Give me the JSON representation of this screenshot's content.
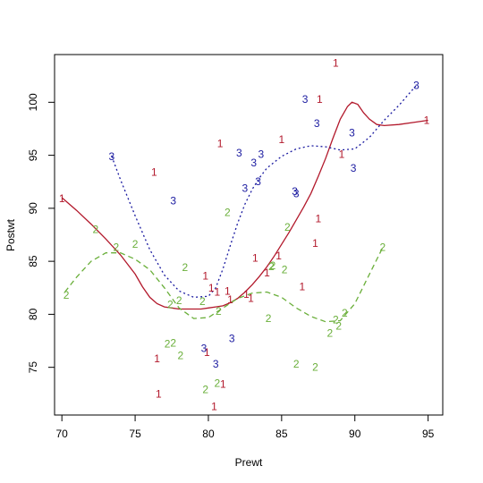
{
  "chart_data": {
    "type": "scatter",
    "title": "",
    "xlabel": "Prewt",
    "ylabel": "Postwt",
    "xlim": [
      69.5,
      96
    ],
    "ylim": [
      70.5,
      104.5
    ],
    "xticks": [
      70,
      75,
      80,
      85,
      90,
      95
    ],
    "yticks": [
      75,
      80,
      85,
      90,
      95,
      100
    ],
    "grid": false,
    "legend": "none",
    "series": [
      {
        "label": "1",
        "color": "#b2182b",
        "line_style": "solid",
        "points": [
          [
            70,
            90.9
          ],
          [
            76.3,
            93.4
          ],
          [
            76.5,
            75.8
          ],
          [
            76.6,
            72.5
          ],
          [
            79.8,
            83.6
          ],
          [
            79.9,
            76.4
          ],
          [
            80.2,
            82.5
          ],
          [
            80.4,
            71.3
          ],
          [
            80.6,
            82.1
          ],
          [
            80.8,
            96.1
          ],
          [
            81.0,
            73.4
          ],
          [
            81.3,
            82.2
          ],
          [
            81.5,
            81.4
          ],
          [
            82.6,
            81.9
          ],
          [
            82.9,
            81.5
          ],
          [
            83.2,
            85.3
          ],
          [
            84.0,
            83.9
          ],
          [
            84.8,
            85.5
          ],
          [
            85.0,
            96.5
          ],
          [
            86.4,
            82.6
          ],
          [
            87.3,
            86.7
          ],
          [
            87.5,
            89.0
          ],
          [
            87.6,
            100.3
          ],
          [
            88.7,
            103.7
          ],
          [
            89.1,
            95.1
          ],
          [
            94.9,
            98.3
          ]
        ],
        "smooth": [
          [
            70,
            91.0
          ],
          [
            71,
            89.8
          ],
          [
            72,
            88.5
          ],
          [
            73,
            87.1
          ],
          [
            74,
            85.6
          ],
          [
            75,
            83.8
          ],
          [
            75.5,
            82.6
          ],
          [
            76,
            81.6
          ],
          [
            76.5,
            81.0
          ],
          [
            77,
            80.7
          ],
          [
            77.5,
            80.6
          ],
          [
            78,
            80.5
          ],
          [
            78.5,
            80.5
          ],
          [
            79,
            80.5
          ],
          [
            79.5,
            80.5
          ],
          [
            80,
            80.6
          ],
          [
            80.5,
            80.7
          ],
          [
            81,
            80.8
          ],
          [
            81.5,
            81.1
          ],
          [
            82,
            81.5
          ],
          [
            82.5,
            82.1
          ],
          [
            83,
            82.8
          ],
          [
            83.5,
            83.6
          ],
          [
            84,
            84.5
          ],
          [
            84.5,
            85.5
          ],
          [
            85,
            86.6
          ],
          [
            85.5,
            87.7
          ],
          [
            86,
            88.9
          ],
          [
            86.5,
            90.1
          ],
          [
            87,
            91.4
          ],
          [
            87.5,
            93.0
          ],
          [
            88,
            94.7
          ],
          [
            88.5,
            96.6
          ],
          [
            89,
            98.4
          ],
          [
            89.5,
            99.6
          ],
          [
            89.8,
            100.0
          ],
          [
            90.2,
            99.8
          ],
          [
            90.6,
            99.0
          ],
          [
            91,
            98.4
          ],
          [
            91.5,
            97.9
          ],
          [
            92,
            97.8
          ],
          [
            93,
            97.9
          ],
          [
            94,
            98.1
          ],
          [
            95,
            98.3
          ]
        ]
      },
      {
        "label": "2",
        "color": "#6aaf3a",
        "line_style": "dashed",
        "points": [
          [
            70.3,
            81.8
          ],
          [
            72.3,
            88.0
          ],
          [
            73.7,
            86.3
          ],
          [
            75.0,
            86.6
          ],
          [
            77.2,
            77.2
          ],
          [
            77.4,
            80.9
          ],
          [
            77.6,
            77.3
          ],
          [
            78.0,
            81.3
          ],
          [
            78.1,
            76.1
          ],
          [
            78.4,
            84.4
          ],
          [
            79.6,
            81.2
          ],
          [
            79.8,
            72.9
          ],
          [
            80.6,
            73.5
          ],
          [
            80.7,
            80.3
          ],
          [
            81.3,
            89.6
          ],
          [
            84.1,
            79.6
          ],
          [
            84.3,
            84.5
          ],
          [
            84.4,
            84.6
          ],
          [
            85.2,
            84.2
          ],
          [
            85.4,
            88.2
          ],
          [
            86.0,
            75.3
          ],
          [
            87.3,
            75.0
          ],
          [
            88.3,
            78.2
          ],
          [
            88.7,
            79.5
          ],
          [
            88.9,
            78.9
          ],
          [
            89.3,
            80.1
          ],
          [
            91.9,
            86.3
          ]
        ],
        "smooth": [
          [
            70.2,
            82.1
          ],
          [
            71,
            83.5
          ],
          [
            72,
            85.0
          ],
          [
            73,
            85.8
          ],
          [
            74,
            85.8
          ],
          [
            75,
            85.2
          ],
          [
            76,
            84.2
          ],
          [
            77,
            82.5
          ],
          [
            78,
            80.6
          ],
          [
            79,
            79.6
          ],
          [
            80,
            79.7
          ],
          [
            81,
            80.6
          ],
          [
            82,
            81.5
          ],
          [
            83,
            82.0
          ],
          [
            84,
            82.1
          ],
          [
            85,
            81.6
          ],
          [
            86,
            80.6
          ],
          [
            87,
            79.8
          ],
          [
            88,
            79.3
          ],
          [
            89,
            79.4
          ],
          [
            90,
            81.0
          ],
          [
            91,
            83.8
          ],
          [
            91.9,
            86.3
          ]
        ]
      },
      {
        "label": "3",
        "color": "#1a1aa0",
        "line_style": "dotted",
        "points": [
          [
            73.4,
            94.9
          ],
          [
            77.6,
            90.7
          ],
          [
            79.7,
            76.8
          ],
          [
            80.5,
            75.3
          ],
          [
            81.6,
            77.7
          ],
          [
            82.1,
            95.2
          ],
          [
            82.5,
            91.9
          ],
          [
            83.1,
            94.3
          ],
          [
            83.4,
            92.5
          ],
          [
            83.6,
            95.1
          ],
          [
            85.9,
            91.6
          ],
          [
            86.0,
            91.4
          ],
          [
            86.6,
            100.3
          ],
          [
            87.4,
            98.0
          ],
          [
            89.8,
            97.1
          ],
          [
            89.9,
            93.8
          ],
          [
            94.2,
            101.6
          ]
        ],
        "smooth": [
          [
            73.4,
            94.9
          ],
          [
            74,
            92.7
          ],
          [
            75,
            89.3
          ],
          [
            76,
            86.1
          ],
          [
            77,
            83.7
          ],
          [
            78,
            82.2
          ],
          [
            79,
            81.6
          ],
          [
            80,
            81.7
          ],
          [
            80.5,
            82.5
          ],
          [
            81,
            84.3
          ],
          [
            81.5,
            86.5
          ],
          [
            82,
            88.6
          ],
          [
            82.5,
            90.4
          ],
          [
            83,
            91.8
          ],
          [
            83.5,
            92.9
          ],
          [
            84,
            93.8
          ],
          [
            85,
            94.9
          ],
          [
            86,
            95.6
          ],
          [
            87,
            95.9
          ],
          [
            88,
            95.8
          ],
          [
            89,
            95.5
          ],
          [
            90,
            95.6
          ],
          [
            91,
            96.7
          ],
          [
            92,
            98.3
          ],
          [
            93,
            99.7
          ],
          [
            94.2,
            101.6
          ]
        ]
      }
    ]
  }
}
